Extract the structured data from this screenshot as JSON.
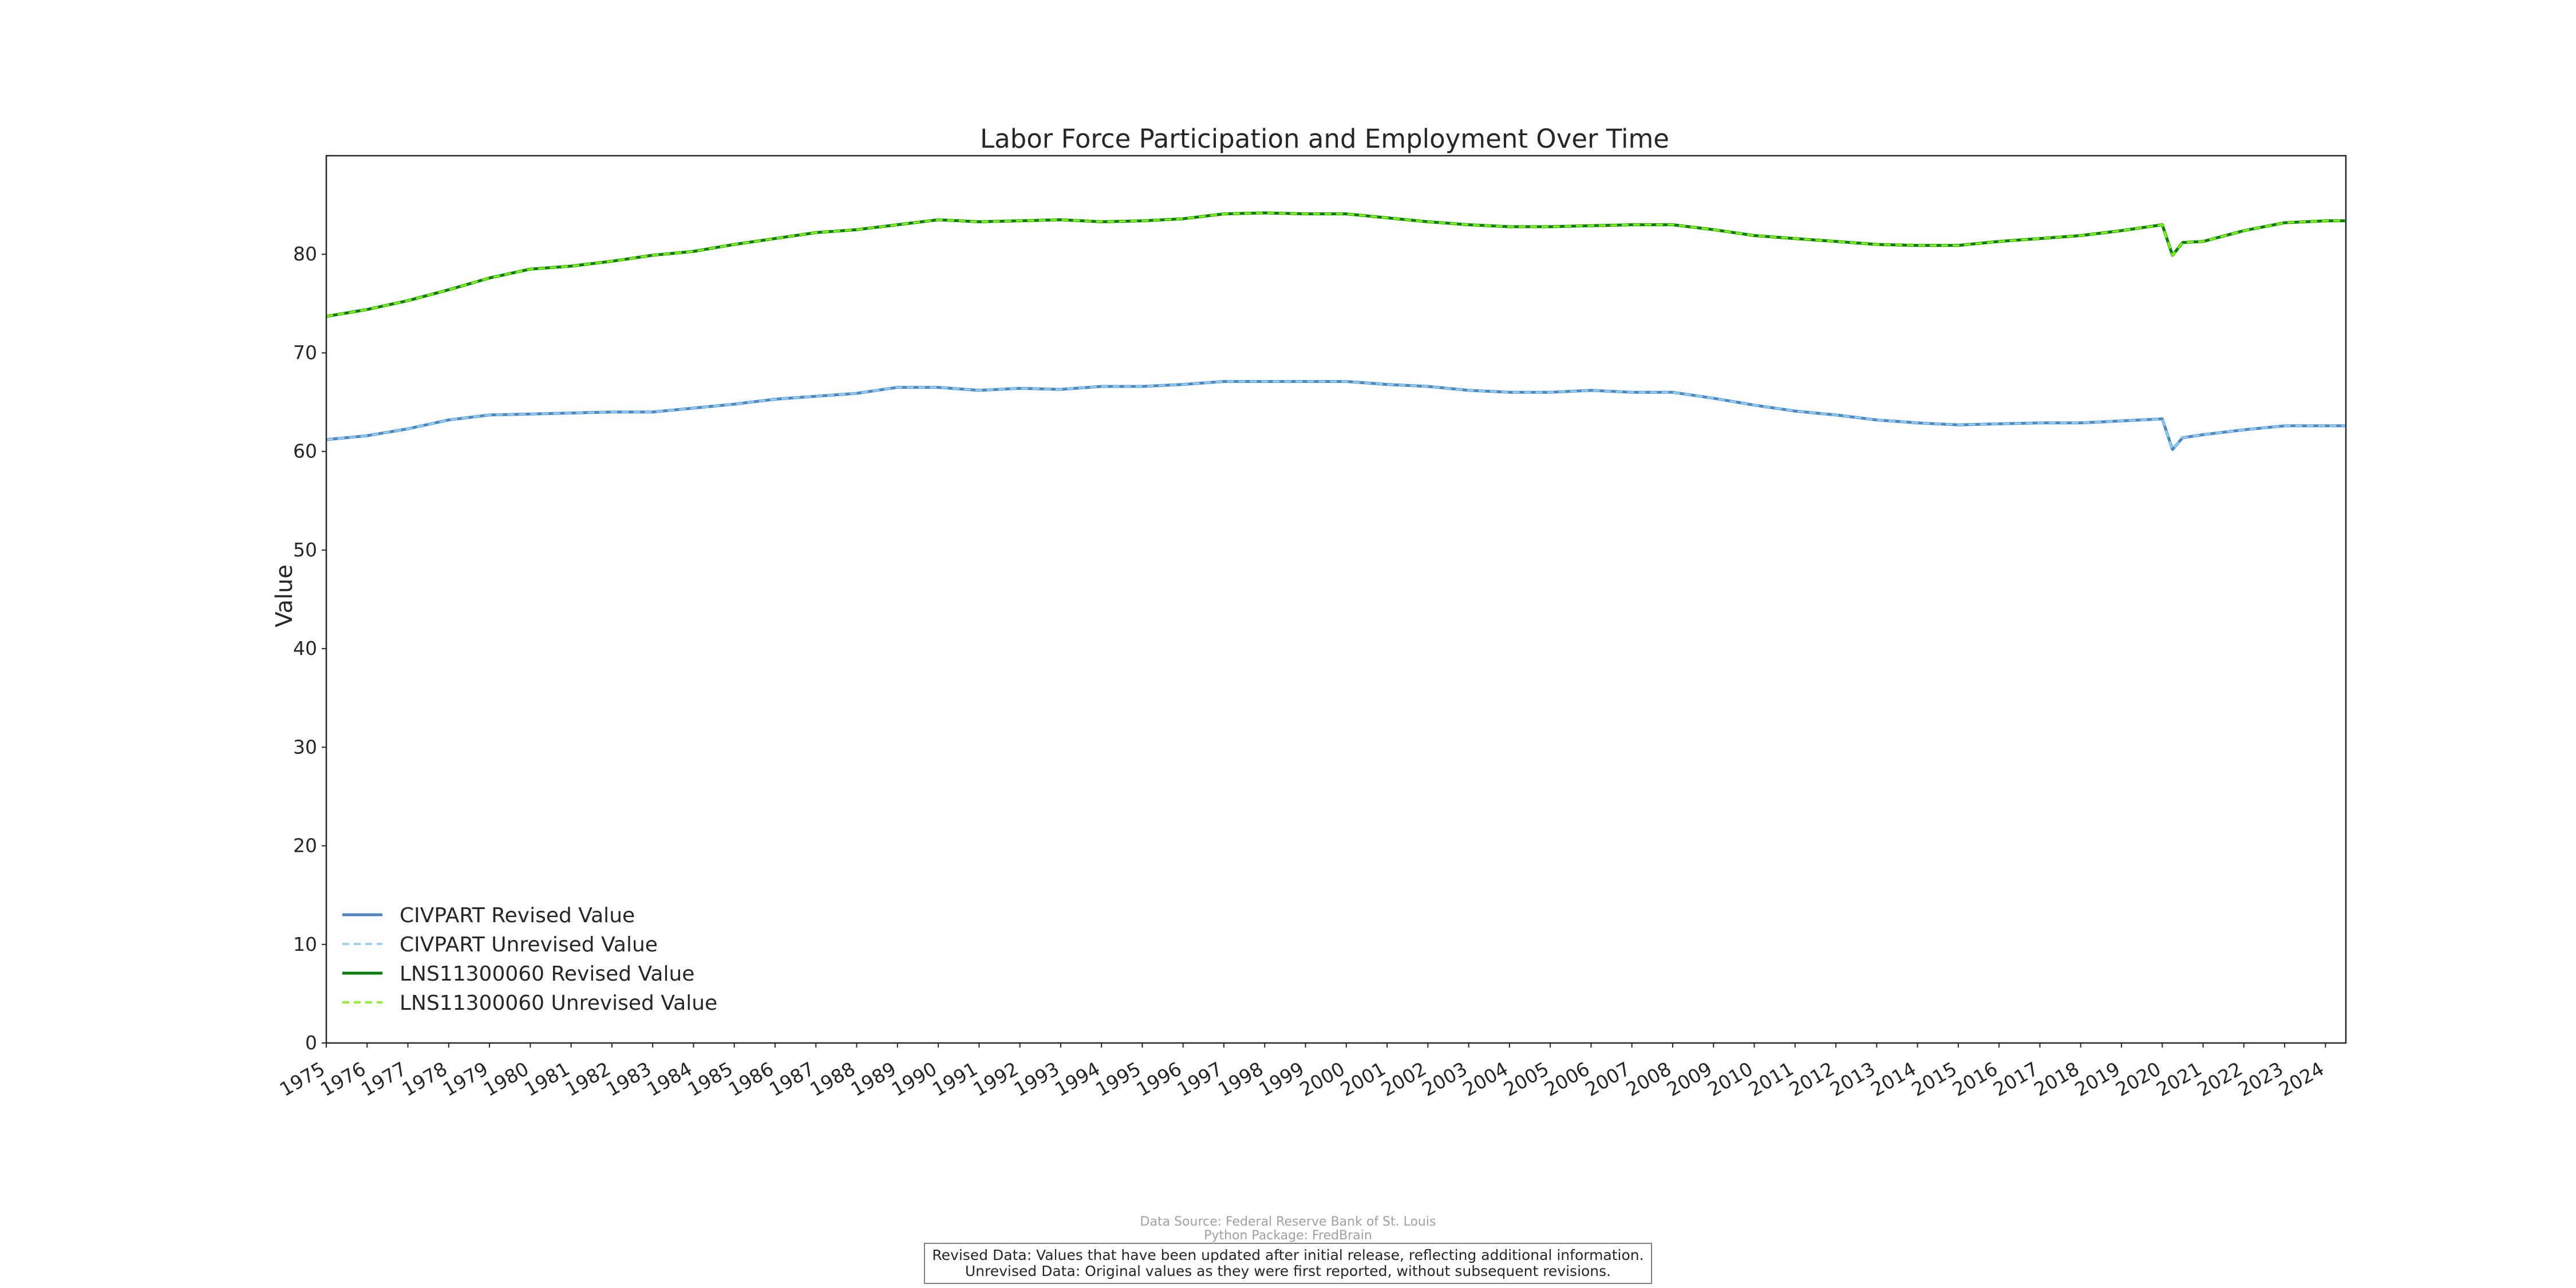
{
  "chart_data": {
    "type": "line",
    "title": "Labor Force Participation and Employment Over Time",
    "xlabel": "",
    "ylabel": "Value",
    "xlim": [
      1975,
      2024.5
    ],
    "ylim": [
      0,
      90
    ],
    "yticks": [
      0,
      10,
      20,
      30,
      40,
      50,
      60,
      70,
      80
    ],
    "xticks": [
      "1975",
      "1976",
      "1977",
      "1978",
      "1979",
      "1980",
      "1981",
      "1982",
      "1983",
      "1984",
      "1985",
      "1986",
      "1987",
      "1988",
      "1989",
      "1990",
      "1991",
      "1992",
      "1993",
      "1994",
      "1995",
      "1996",
      "1997",
      "1998",
      "1999",
      "2000",
      "2001",
      "2002",
      "2003",
      "2004",
      "2005",
      "2006",
      "2007",
      "2008",
      "2009",
      "2010",
      "2011",
      "2012",
      "2013",
      "2014",
      "2015",
      "2016",
      "2017",
      "2018",
      "2019",
      "2020",
      "2021",
      "2022",
      "2023",
      "2024"
    ],
    "grid": false,
    "legend_position": "lower-left",
    "series": [
      {
        "name": "CIVPART Revised Value",
        "color": "#4a86c8",
        "style": "solid",
        "x": [
          1975,
          1976,
          1977,
          1978,
          1979,
          1980,
          1981,
          1982,
          1983,
          1984,
          1985,
          1986,
          1987,
          1988,
          1989,
          1990,
          1991,
          1992,
          1993,
          1994,
          1995,
          1996,
          1997,
          1998,
          1999,
          2000,
          2001,
          2002,
          2003,
          2004,
          2005,
          2006,
          2007,
          2008,
          2009,
          2010,
          2011,
          2012,
          2013,
          2014,
          2015,
          2016,
          2017,
          2018,
          2019,
          2020,
          2020.25,
          2020.5,
          2021,
          2022,
          2023,
          2024,
          2024.5
        ],
        "y": [
          61.2,
          61.6,
          62.3,
          63.2,
          63.7,
          63.8,
          63.9,
          64.0,
          64.0,
          64.4,
          64.8,
          65.3,
          65.6,
          65.9,
          66.5,
          66.5,
          66.2,
          66.4,
          66.3,
          66.6,
          66.6,
          66.8,
          67.1,
          67.1,
          67.1,
          67.1,
          66.8,
          66.6,
          66.2,
          66.0,
          66.0,
          66.2,
          66.0,
          66.0,
          65.4,
          64.7,
          64.1,
          63.7,
          63.2,
          62.9,
          62.7,
          62.8,
          62.9,
          62.9,
          63.1,
          63.3,
          60.2,
          61.4,
          61.7,
          62.2,
          62.6,
          62.6,
          62.6
        ]
      },
      {
        "name": "CIVPART Unrevised Value",
        "color": "#87cefa",
        "style": "dashed",
        "x": [
          1975,
          1976,
          1977,
          1978,
          1979,
          1980,
          1981,
          1982,
          1983,
          1984,
          1985,
          1986,
          1987,
          1988,
          1989,
          1990,
          1991,
          1992,
          1993,
          1994,
          1995,
          1996,
          1997,
          1998,
          1999,
          2000,
          2001,
          2002,
          2003,
          2004,
          2005,
          2006,
          2007,
          2008,
          2009,
          2010,
          2011,
          2012,
          2013,
          2014,
          2015,
          2016,
          2017,
          2018,
          2019,
          2020,
          2020.25,
          2020.5,
          2021,
          2022,
          2023,
          2024,
          2024.5
        ],
        "y": [
          61.2,
          61.6,
          62.3,
          63.2,
          63.7,
          63.8,
          63.9,
          64.0,
          64.0,
          64.4,
          64.8,
          65.3,
          65.6,
          65.9,
          66.5,
          66.5,
          66.2,
          66.4,
          66.3,
          66.6,
          66.6,
          66.8,
          67.1,
          67.1,
          67.1,
          67.1,
          66.8,
          66.6,
          66.2,
          66.0,
          66.0,
          66.2,
          66.0,
          66.0,
          65.4,
          64.7,
          64.1,
          63.7,
          63.2,
          62.9,
          62.7,
          62.8,
          62.9,
          62.9,
          63.1,
          63.3,
          60.2,
          61.4,
          61.7,
          62.2,
          62.6,
          62.6,
          62.6
        ]
      },
      {
        "name": "LNS11300060 Revised Value",
        "color": "#008000",
        "style": "solid",
        "x": [
          1975,
          1976,
          1977,
          1978,
          1979,
          1980,
          1981,
          1982,
          1983,
          1984,
          1985,
          1986,
          1987,
          1988,
          1989,
          1990,
          1991,
          1992,
          1993,
          1994,
          1995,
          1996,
          1997,
          1998,
          1999,
          2000,
          2001,
          2002,
          2003,
          2004,
          2005,
          2006,
          2007,
          2008,
          2009,
          2010,
          2011,
          2012,
          2013,
          2014,
          2015,
          2016,
          2017,
          2018,
          2019,
          2020,
          2020.25,
          2020.5,
          2021,
          2022,
          2023,
          2024,
          2024.5
        ],
        "y": [
          73.7,
          74.4,
          75.3,
          76.4,
          77.6,
          78.5,
          78.8,
          79.3,
          79.9,
          80.3,
          81.0,
          81.6,
          82.2,
          82.5,
          83.0,
          83.5,
          83.3,
          83.4,
          83.5,
          83.3,
          83.4,
          83.6,
          84.1,
          84.2,
          84.1,
          84.1,
          83.7,
          83.3,
          83.0,
          82.8,
          82.8,
          82.9,
          83.0,
          83.0,
          82.5,
          81.9,
          81.6,
          81.3,
          81.0,
          80.9,
          80.9,
          81.3,
          81.6,
          81.9,
          82.4,
          83.0,
          79.9,
          81.2,
          81.3,
          82.4,
          83.2,
          83.4,
          83.4
        ]
      },
      {
        "name": "LNS11300060 Unrevised Value",
        "color": "#7cfc00",
        "style": "dashed",
        "x": [
          1975,
          1976,
          1977,
          1978,
          1979,
          1980,
          1981,
          1982,
          1983,
          1984,
          1985,
          1986,
          1987,
          1988,
          1989,
          1990,
          1991,
          1992,
          1993,
          1994,
          1995,
          1996,
          1997,
          1998,
          1999,
          2000,
          2001,
          2002,
          2003,
          2004,
          2005,
          2006,
          2007,
          2008,
          2009,
          2010,
          2011,
          2012,
          2013,
          2014,
          2015,
          2016,
          2017,
          2018,
          2019,
          2020,
          2020.25,
          2020.5,
          2021,
          2022,
          2023,
          2024,
          2024.5
        ],
        "y": [
          73.7,
          74.4,
          75.3,
          76.4,
          77.6,
          78.5,
          78.8,
          79.3,
          79.9,
          80.3,
          81.0,
          81.6,
          82.2,
          82.5,
          83.0,
          83.5,
          83.3,
          83.4,
          83.5,
          83.3,
          83.4,
          83.6,
          84.1,
          84.2,
          84.1,
          84.1,
          83.7,
          83.3,
          83.0,
          82.8,
          82.8,
          82.9,
          83.0,
          83.0,
          82.5,
          81.9,
          81.6,
          81.3,
          81.0,
          80.9,
          80.9,
          81.3,
          81.6,
          81.9,
          82.4,
          83.0,
          79.9,
          81.2,
          81.3,
          82.4,
          83.2,
          83.4,
          83.4
        ]
      }
    ]
  },
  "footer": {
    "source": "Data Source: Federal Reserve Bank of St. Louis",
    "package": "Python Package: FredBrain",
    "note_revised": "Revised Data: Values that have been updated after initial release, reflecting additional information.",
    "note_unrevised": "Unrevised Data: Original values as they were first reported, without subsequent revisions."
  }
}
